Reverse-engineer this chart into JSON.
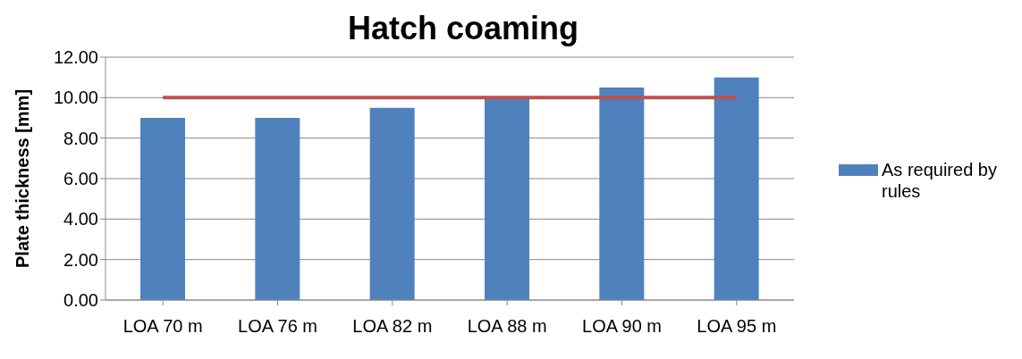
{
  "chart_data": {
    "type": "bar",
    "title": "Hatch coaming",
    "ylabel": "Plate thickness [mm]",
    "categories": [
      "LOA 70 m",
      "LOA 76 m",
      "LOA 82 m",
      "LOA 88 m",
      "LOA 90 m",
      "LOA 95 m"
    ],
    "series": [
      {
        "name": "As required by rules",
        "color": "#4f81bd",
        "values": [
          9,
          9,
          9.5,
          10,
          10.5,
          11
        ]
      },
      {
        "type": "line",
        "color": "#c0504d",
        "values": [
          10,
          10,
          10,
          10,
          10,
          10
        ]
      }
    ],
    "ylim": [
      0,
      12
    ],
    "yticks": [
      {
        "value": 0,
        "label": "0.00"
      },
      {
        "value": 2,
        "label": "2.00"
      },
      {
        "value": 4,
        "label": "4.00"
      },
      {
        "value": 6,
        "label": "6.00"
      },
      {
        "value": 8,
        "label": "8.00"
      },
      {
        "value": 10,
        "label": "10.00"
      },
      {
        "value": 12,
        "label": "12.00"
      }
    ],
    "grid": "y",
    "legend": "right",
    "marker": "none"
  }
}
